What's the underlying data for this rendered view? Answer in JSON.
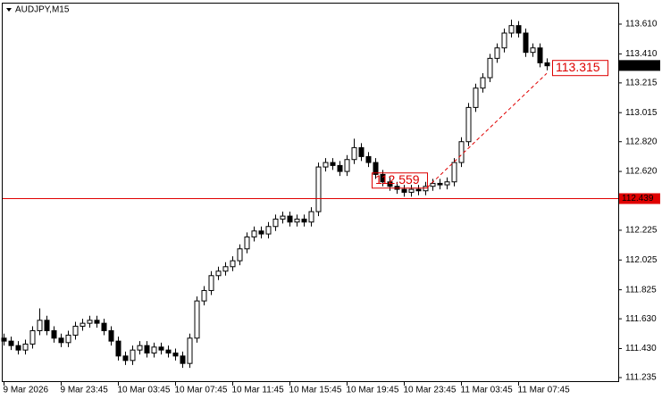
{
  "chart_data": {
    "type": "candlestick",
    "title": "AUDJPY,M15",
    "categories": [
      "9 Mar 2026",
      null,
      null,
      null,
      null,
      null,
      null,
      null,
      "9 Mar 23:45",
      null,
      null,
      null,
      null,
      null,
      null,
      null,
      "10 Mar 03:45",
      null,
      null,
      null,
      null,
      null,
      null,
      null,
      "10 Mar 07:45",
      null,
      null,
      null,
      null,
      null,
      null,
      null,
      "10 Mar 11:45",
      null,
      null,
      null,
      null,
      null,
      null,
      null,
      "10 Mar 15:45",
      null,
      null,
      null,
      null,
      null,
      null,
      null,
      "10 Mar 19:45",
      null,
      null,
      null,
      null,
      null,
      null,
      null,
      "10 Mar 23:45",
      null,
      null,
      null,
      null,
      null,
      null,
      null,
      "11 Mar 03:45",
      null,
      null,
      null,
      null,
      null,
      null,
      null,
      "11 Mar 07:45",
      null,
      null,
      null,
      null
    ],
    "open": [
      111.5,
      111.48,
      111.45,
      111.42,
      111.46,
      111.55,
      111.62,
      111.55,
      111.5,
      111.47,
      111.52,
      111.58,
      111.6,
      111.62,
      111.6,
      111.55,
      111.48,
      111.38,
      111.35,
      111.42,
      111.45,
      111.4,
      111.44,
      111.42,
      111.4,
      111.38,
      111.33,
      111.5,
      111.75,
      111.82,
      111.92,
      111.95,
      111.98,
      112.02,
      112.1,
      112.18,
      112.22,
      112.2,
      112.25,
      112.3,
      112.32,
      112.28,
      112.3,
      112.28,
      112.35,
      112.65,
      112.68,
      112.66,
      112.62,
      112.7,
      112.78,
      112.72,
      112.68,
      112.6,
      112.55,
      112.52,
      112.5,
      112.48,
      112.5,
      112.49,
      112.52,
      112.54,
      112.53,
      112.55,
      112.68,
      112.82,
      113.05,
      113.18,
      113.25,
      113.38,
      113.45,
      113.55,
      113.6,
      113.55,
      113.42,
      113.45,
      113.35
    ],
    "high": [
      111.53,
      111.51,
      111.48,
      111.49,
      111.58,
      111.7,
      111.65,
      111.58,
      111.53,
      111.55,
      111.61,
      111.63,
      111.65,
      111.65,
      111.63,
      111.58,
      111.51,
      111.41,
      111.45,
      111.48,
      111.48,
      111.47,
      111.47,
      111.45,
      111.43,
      111.41,
      111.53,
      111.78,
      111.85,
      111.95,
      111.98,
      112.01,
      112.05,
      112.13,
      112.21,
      112.25,
      112.25,
      112.28,
      112.33,
      112.35,
      112.35,
      112.33,
      112.33,
      112.38,
      112.68,
      112.71,
      112.71,
      112.69,
      112.73,
      112.84,
      112.81,
      112.75,
      112.71,
      112.63,
      112.58,
      112.55,
      112.53,
      112.53,
      112.53,
      112.55,
      112.57,
      112.57,
      112.58,
      112.71,
      112.85,
      113.08,
      113.21,
      113.28,
      113.41,
      113.48,
      113.58,
      113.64,
      113.63,
      113.58,
      113.48,
      113.48,
      113.38
    ],
    "low": [
      111.45,
      111.42,
      111.39,
      111.39,
      111.43,
      111.52,
      111.52,
      111.47,
      111.44,
      111.44,
      111.49,
      111.55,
      111.57,
      111.57,
      111.52,
      111.45,
      111.35,
      111.32,
      111.32,
      111.39,
      111.37,
      111.37,
      111.39,
      111.37,
      111.35,
      111.3,
      111.3,
      111.47,
      111.72,
      111.79,
      111.89,
      111.92,
      111.95,
      111.99,
      112.07,
      112.15,
      112.17,
      112.17,
      112.22,
      112.27,
      112.25,
      112.25,
      112.25,
      112.25,
      112.32,
      112.62,
      112.63,
      112.59,
      112.59,
      112.67,
      112.69,
      112.65,
      112.57,
      112.52,
      112.49,
      112.47,
      112.45,
      112.45,
      112.46,
      112.46,
      112.49,
      112.5,
      112.5,
      112.52,
      112.65,
      112.79,
      113.02,
      113.15,
      113.22,
      113.35,
      113.42,
      113.52,
      113.52,
      113.39,
      113.39,
      113.32,
      113.3
    ],
    "close": [
      111.48,
      111.45,
      111.42,
      111.46,
      111.55,
      111.62,
      111.55,
      111.5,
      111.47,
      111.52,
      111.58,
      111.6,
      111.62,
      111.6,
      111.55,
      111.48,
      111.38,
      111.35,
      111.42,
      111.45,
      111.4,
      111.44,
      111.42,
      111.4,
      111.38,
      111.33,
      111.5,
      111.75,
      111.82,
      111.92,
      111.95,
      111.98,
      112.02,
      112.1,
      112.18,
      112.22,
      112.2,
      112.25,
      112.3,
      112.32,
      112.28,
      112.3,
      112.28,
      112.35,
      112.65,
      112.68,
      112.66,
      112.62,
      112.7,
      112.78,
      112.72,
      112.68,
      112.6,
      112.55,
      112.52,
      112.5,
      112.48,
      112.5,
      112.49,
      112.52,
      112.54,
      112.53,
      112.55,
      112.68,
      112.82,
      113.05,
      113.18,
      113.25,
      113.38,
      113.45,
      113.55,
      113.6,
      113.55,
      113.42,
      113.45,
      113.35,
      113.33
    ],
    "ylim": [
      111.205,
      113.754
    ],
    "yticks": [
      {
        "value": 113.61,
        "label": "113.610"
      },
      {
        "value": 113.41,
        "label": "113.410"
      },
      {
        "value": 113.215,
        "label": "113.215"
      },
      {
        "value": 113.015,
        "label": "113.015"
      },
      {
        "value": 112.82,
        "label": "112.820"
      },
      {
        "value": 112.62,
        "label": "112.620"
      },
      {
        "value": 112.425,
        "label": "112.425"
      },
      {
        "value": 112.225,
        "label": "112.225"
      },
      {
        "value": 112.025,
        "label": "112.025"
      },
      {
        "value": 111.825,
        "label": "111.825"
      },
      {
        "value": 111.63,
        "label": "111.630"
      },
      {
        "value": 111.43,
        "label": "111.430"
      },
      {
        "value": 111.235,
        "label": "111.235"
      }
    ],
    "hline": 112.439,
    "hline_color": "#e00000",
    "last_price": 113.332,
    "price_labels": [
      112.559,
      113.315
    ]
  }
}
